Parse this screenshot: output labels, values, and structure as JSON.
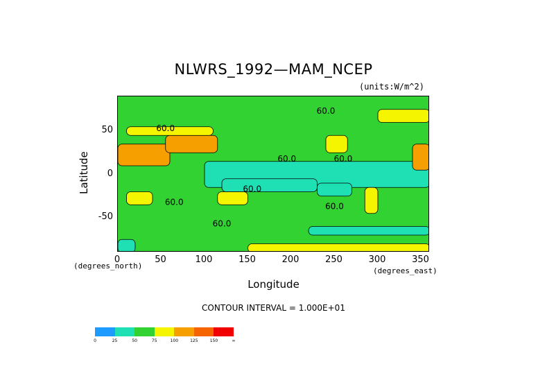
{
  "chart_data": {
    "type": "heatmap",
    "title": "NLWRS_1992—MAM_NCEP",
    "units": "(units:W/m^2)",
    "xlabel": "Longitude",
    "ylabel": "Latitude",
    "x_unit_note": "(degrees_east)",
    "y_unit_note": "(degrees_north)",
    "contour_note": "CONTOUR INTERVAL = 1.000E+01",
    "xlim": [
      0,
      360
    ],
    "ylim": [
      -90,
      90
    ],
    "x_ticks": [
      0,
      50,
      100,
      150,
      200,
      250,
      300,
      350
    ],
    "y_ticks": [
      -50,
      0,
      50
    ],
    "contour_labels": [
      "60.0",
      "60.0",
      "60.0",
      "60.0",
      "60.0",
      "60.0",
      "60.0",
      "60.0"
    ],
    "colorbar": {
      "levels": [
        "0",
        "25",
        "50",
        "75",
        "100",
        "125",
        "150",
        "∞"
      ],
      "colors": [
        "#1e9bff",
        "#1ee0b4",
        "#32d232",
        "#f5f500",
        "#f5a000",
        "#f56400",
        "#f00000"
      ]
    },
    "regions": [
      {
        "lon": [
          0,
          360
        ],
        "lat": [
          -90,
          90
        ],
        "value": 55
      },
      {
        "lon": [
          100,
          360
        ],
        "lat": [
          -15,
          15
        ],
        "value": 40
      },
      {
        "lon": [
          120,
          230
        ],
        "lat": [
          -20,
          -5
        ],
        "value": 40
      },
      {
        "lon": [
          230,
          270
        ],
        "lat": [
          -25,
          -10
        ],
        "value": 40
      },
      {
        "lon": [
          0,
          20
        ],
        "lat": [
          -90,
          -75
        ],
        "value": 40
      },
      {
        "lon": [
          220,
          360
        ],
        "lat": [
          -70,
          -60
        ],
        "value": 40
      },
      {
        "lon": [
          0,
          60
        ],
        "lat": [
          10,
          35
        ],
        "value": 115
      },
      {
        "lon": [
          55,
          115
        ],
        "lat": [
          25,
          45
        ],
        "value": 110
      },
      {
        "lon": [
          10,
          110
        ],
        "lat": [
          45,
          55
        ],
        "value": 80
      },
      {
        "lon": [
          240,
          265
        ],
        "lat": [
          25,
          45
        ],
        "value": 90
      },
      {
        "lon": [
          340,
          360
        ],
        "lat": [
          5,
          35
        ],
        "value": 120
      },
      {
        "lon": [
          285,
          300
        ],
        "lat": [
          -45,
          -15
        ],
        "value": 85
      },
      {
        "lon": [
          115,
          150
        ],
        "lat": [
          -35,
          -20
        ],
        "value": 85
      },
      {
        "lon": [
          10,
          40
        ],
        "lat": [
          -35,
          -20
        ],
        "value": 85
      },
      {
        "lon": [
          150,
          360
        ],
        "lat": [
          -90,
          -80
        ],
        "value": 80
      },
      {
        "lon": [
          300,
          360
        ],
        "lat": [
          60,
          75
        ],
        "value": 80
      }
    ]
  }
}
